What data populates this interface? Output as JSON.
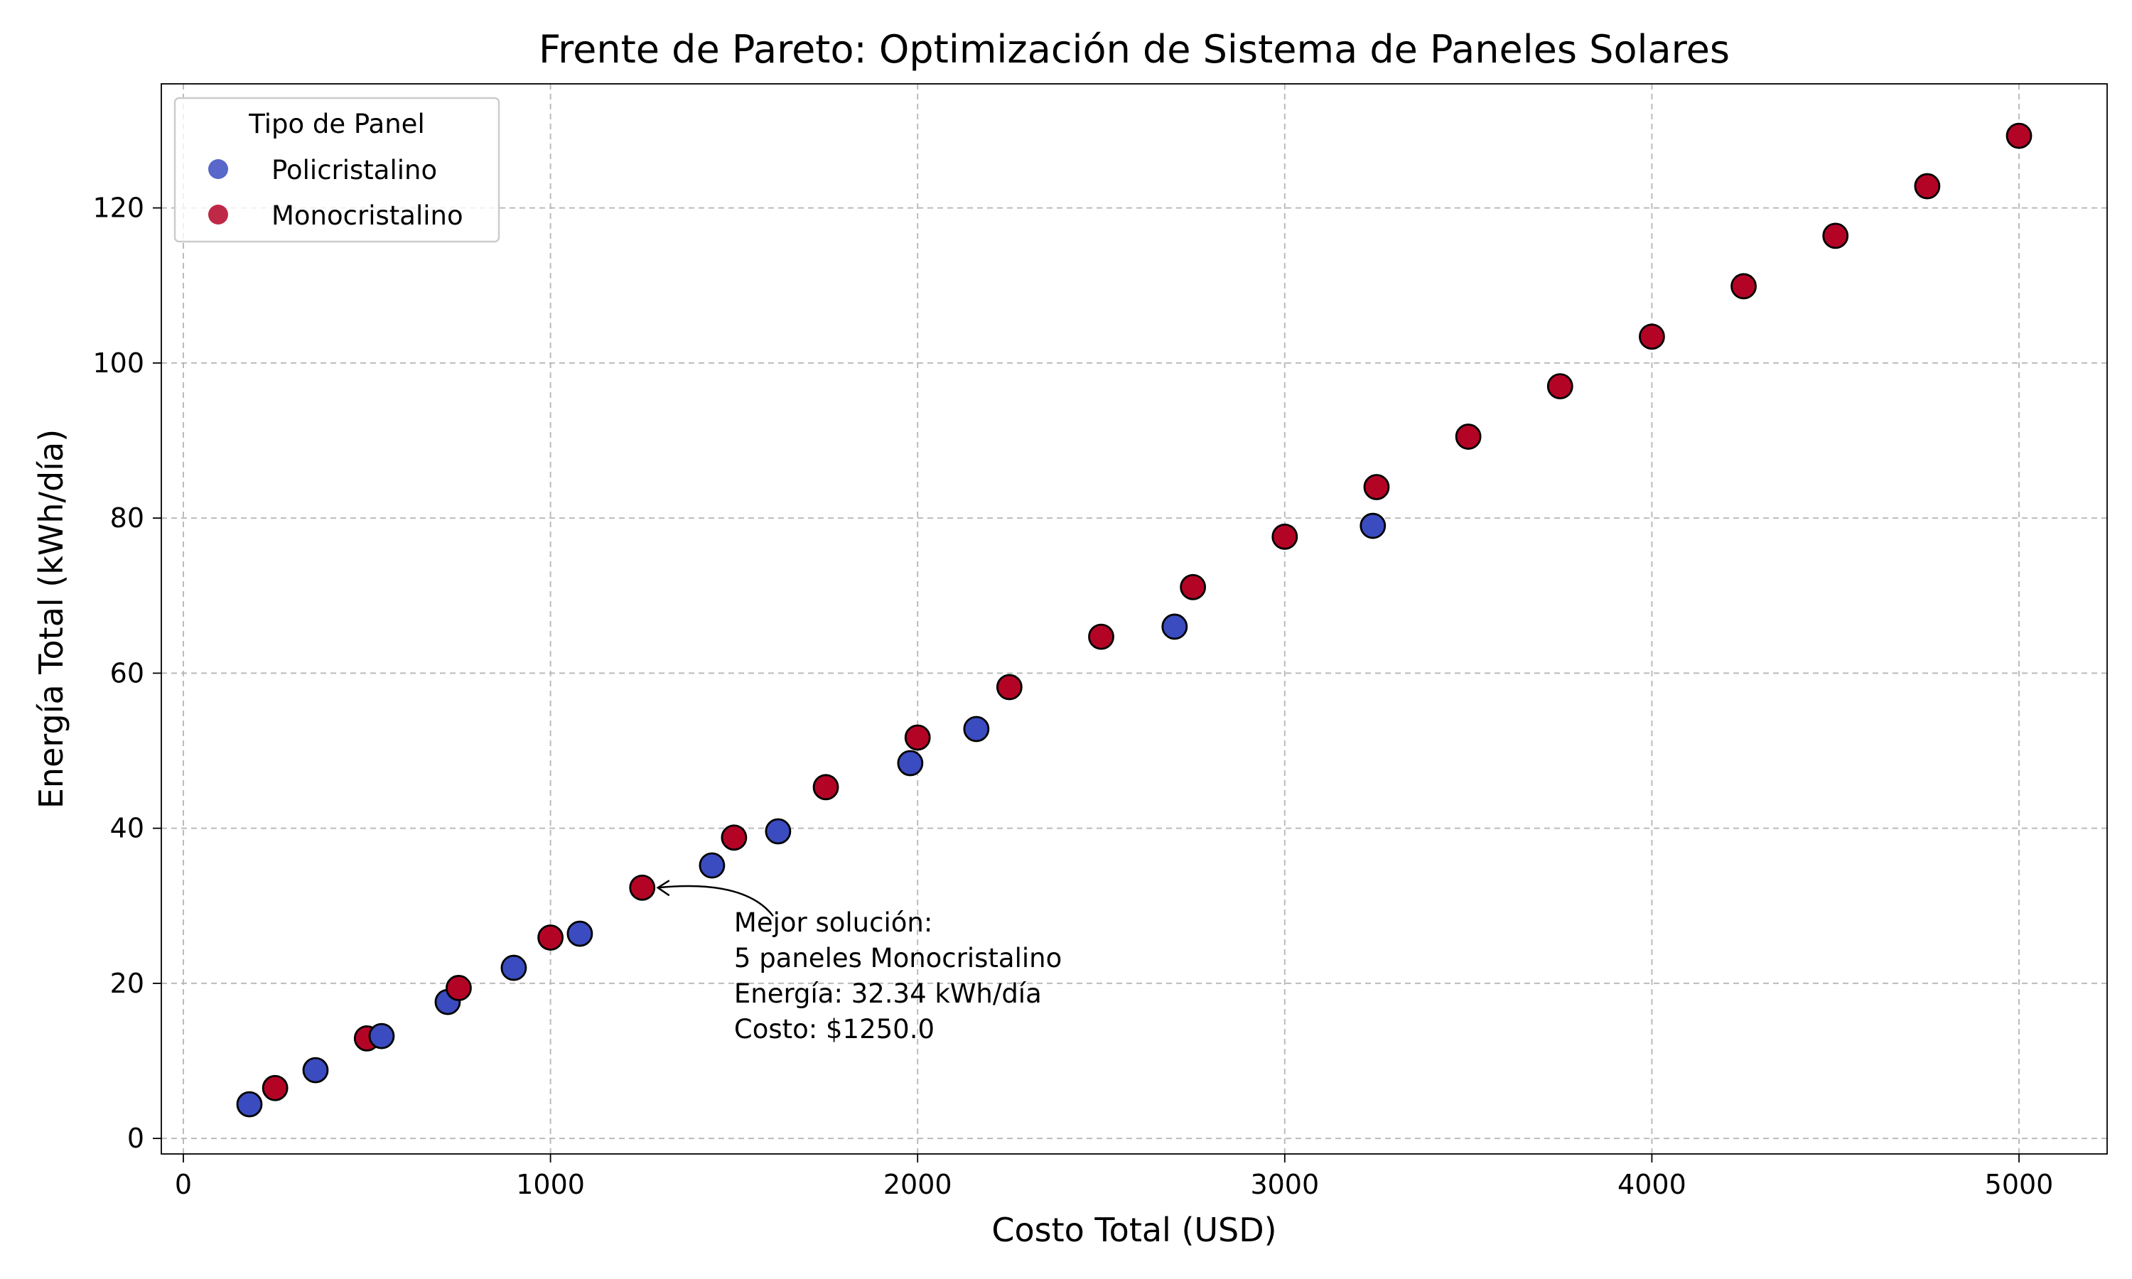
{
  "chart_data": {
    "type": "scatter",
    "title": "Frente de Pareto: Optimización de Sistema de Paneles Solares",
    "xlabel": "Costo Total (USD)",
    "ylabel": "Energía Total (kWh/día)",
    "xlim": [
      -60,
      5240
    ],
    "ylim": [
      -2,
      136
    ],
    "xticks": [
      0,
      1000,
      2000,
      3000,
      4000,
      5000
    ],
    "yticks": [
      0,
      20,
      40,
      60,
      80,
      100,
      120
    ],
    "grid": true,
    "legend": {
      "title": "Tipo de Panel",
      "placement": "upper-left"
    },
    "series": [
      {
        "name": "Policristalino",
        "color": "#3b4cc0",
        "points": [
          {
            "x": 180,
            "y": 4.4
          },
          {
            "x": 360,
            "y": 8.8
          },
          {
            "x": 540,
            "y": 13.2
          },
          {
            "x": 720,
            "y": 17.6
          },
          {
            "x": 900,
            "y": 22.0
          },
          {
            "x": 1080,
            "y": 26.4
          },
          {
            "x": 1440,
            "y": 35.2
          },
          {
            "x": 1620,
            "y": 39.6
          },
          {
            "x": 1980,
            "y": 48.4
          },
          {
            "x": 2160,
            "y": 52.8
          },
          {
            "x": 2700,
            "y": 66.0
          },
          {
            "x": 3240,
            "y": 79.0
          }
        ]
      },
      {
        "name": "Monocristalino",
        "color": "#b40426",
        "points": [
          {
            "x": 250,
            "y": 6.5
          },
          {
            "x": 500,
            "y": 12.9
          },
          {
            "x": 750,
            "y": 19.4
          },
          {
            "x": 1000,
            "y": 25.9
          },
          {
            "x": 1250,
            "y": 32.34
          },
          {
            "x": 1500,
            "y": 38.8
          },
          {
            "x": 1750,
            "y": 45.3
          },
          {
            "x": 2000,
            "y": 51.7
          },
          {
            "x": 2250,
            "y": 58.2
          },
          {
            "x": 2500,
            "y": 64.7
          },
          {
            "x": 2750,
            "y": 71.1
          },
          {
            "x": 3000,
            "y": 77.6
          },
          {
            "x": 3250,
            "y": 84.0
          },
          {
            "x": 3500,
            "y": 90.5
          },
          {
            "x": 3750,
            "y": 97.0
          },
          {
            "x": 4000,
            "y": 103.4
          },
          {
            "x": 4250,
            "y": 109.9
          },
          {
            "x": 4500,
            "y": 116.4
          },
          {
            "x": 4750,
            "y": 122.8
          },
          {
            "x": 5000,
            "y": 129.3
          }
        ]
      }
    ],
    "annotation": {
      "lines": [
        "Mejor solución:",
        "5 paneles Monocristalino",
        "Energía: 32.34 kWh/día",
        "Costo: $1250.0"
      ],
      "target": {
        "x": 1250,
        "y": 32.34
      }
    }
  }
}
